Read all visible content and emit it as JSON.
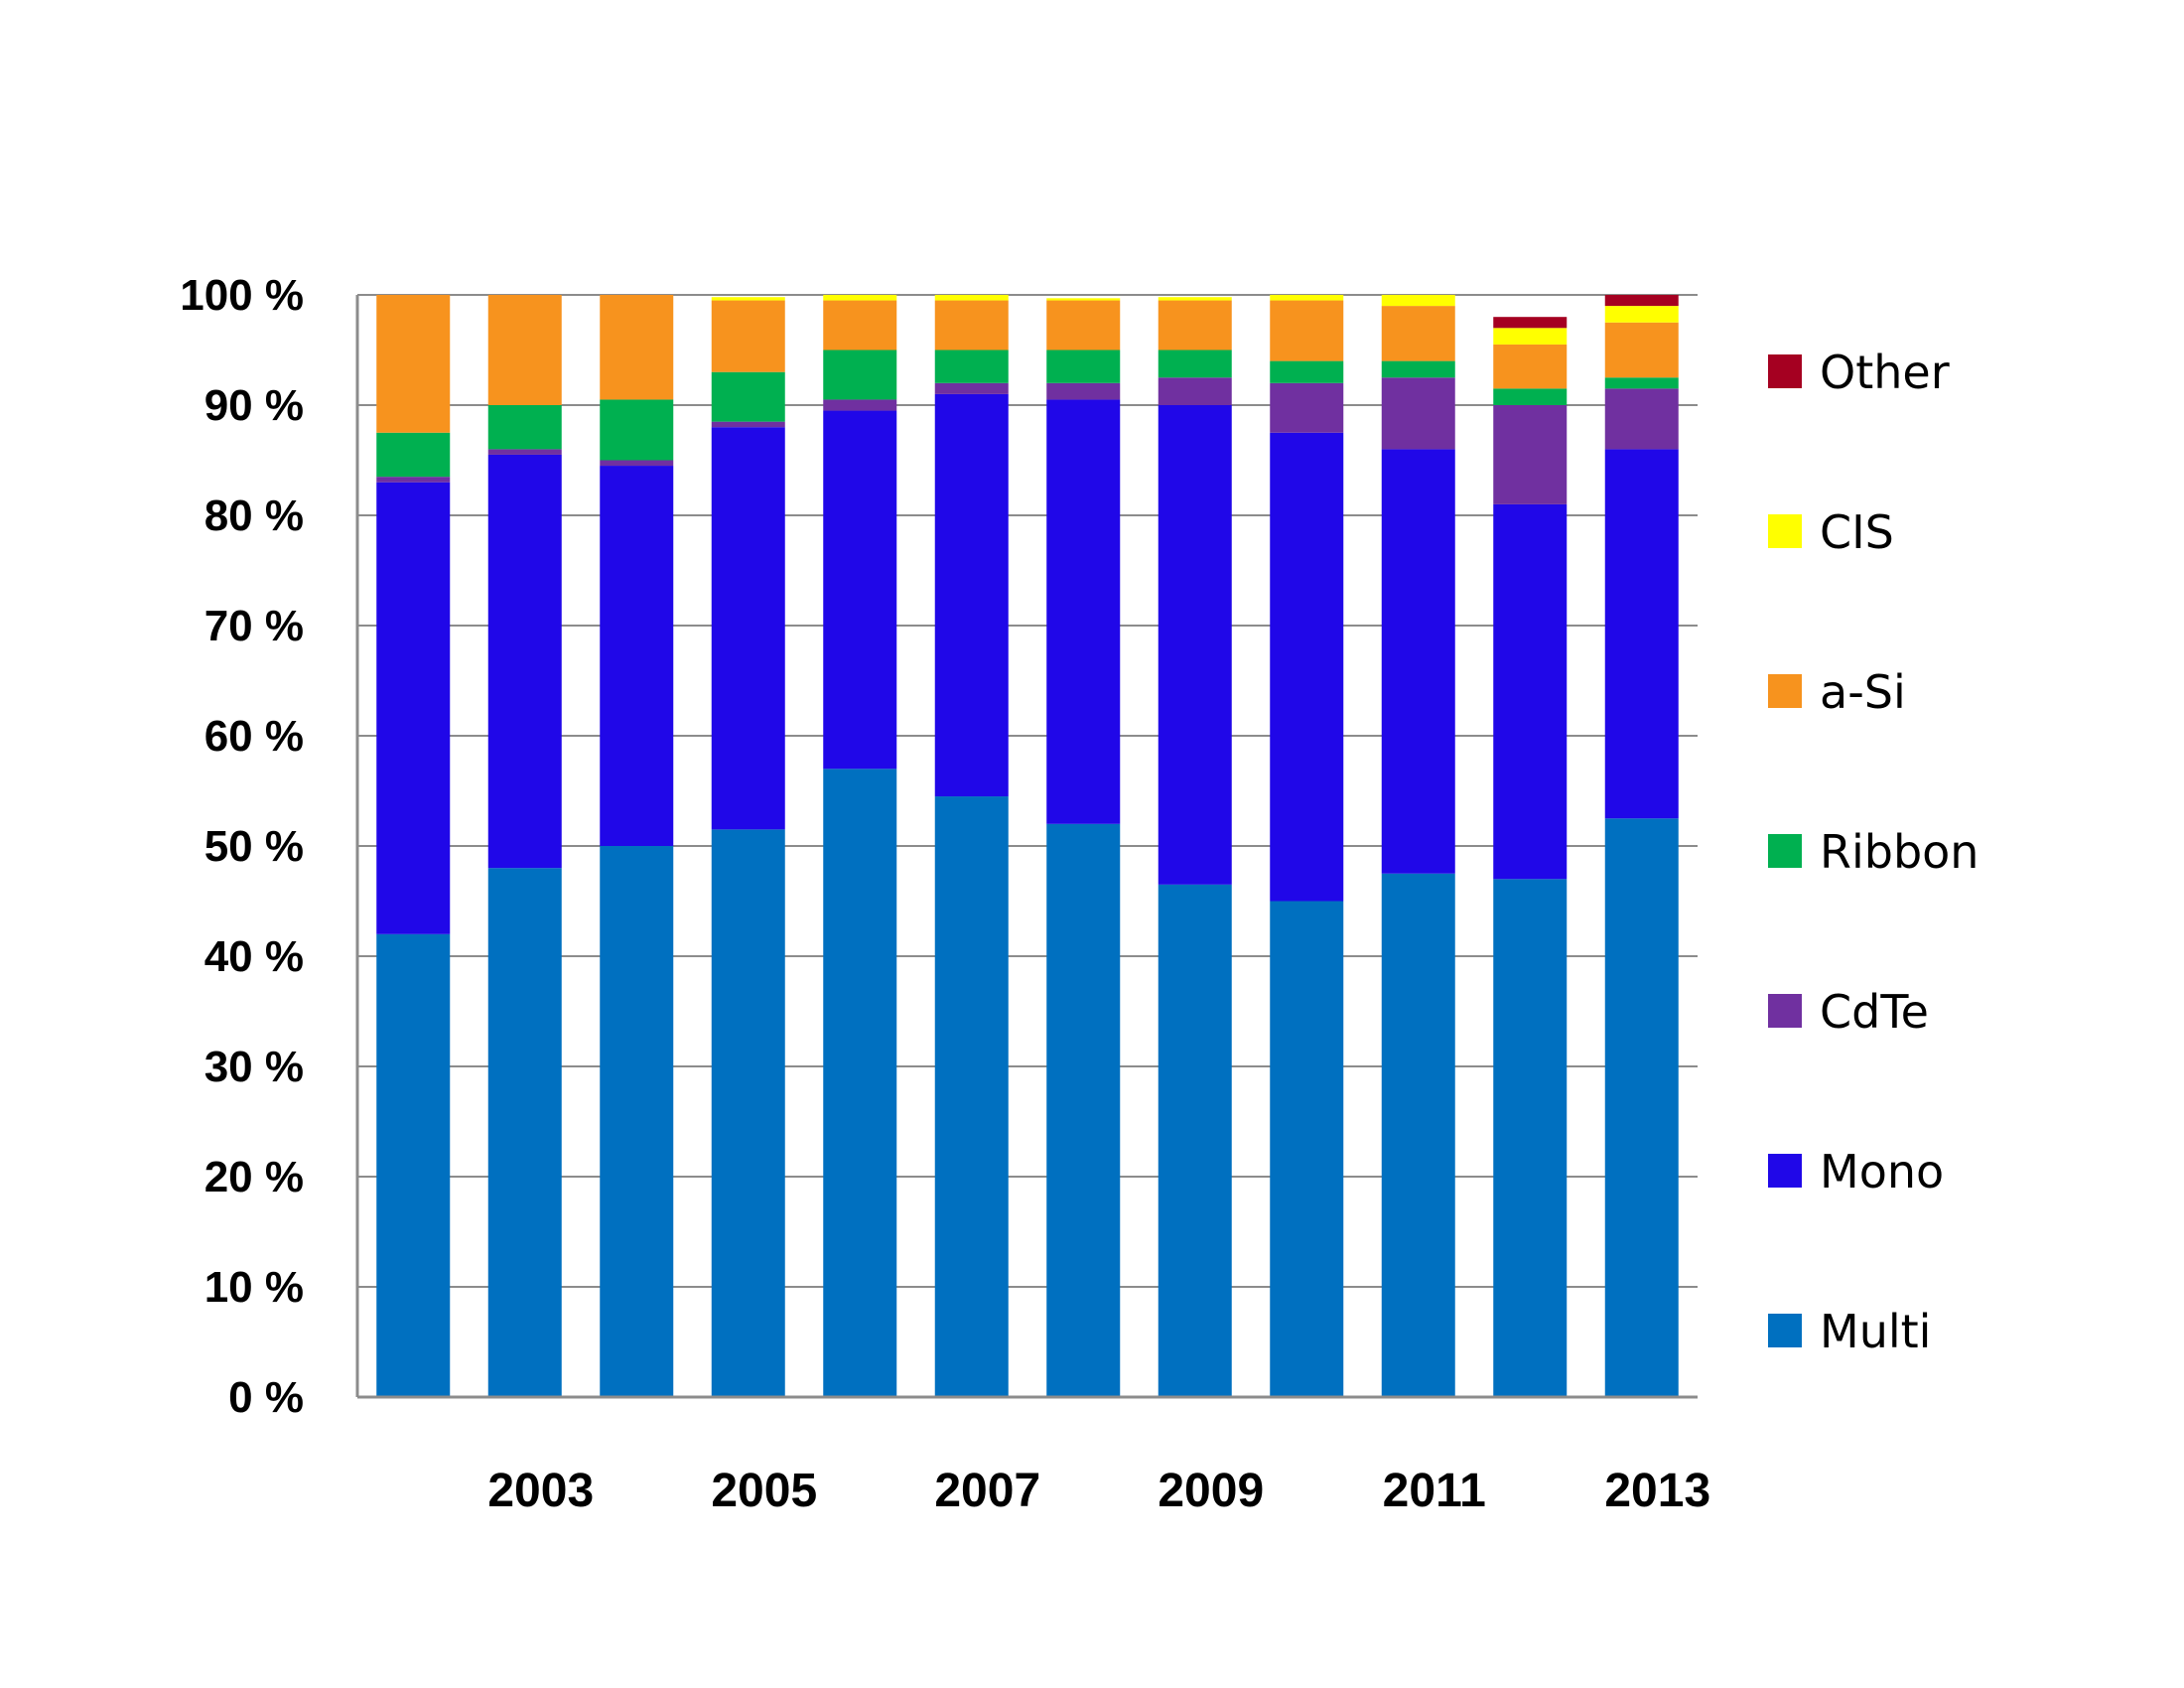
{
  "chart_data": {
    "type": "bar",
    "stacked": true,
    "categories": [
      "2002",
      "2003",
      "2004",
      "2005",
      "2006",
      "2007",
      "2008",
      "2009",
      "2010",
      "2011",
      "2012",
      "2013"
    ],
    "x_tick_labels": [
      "",
      "2003",
      "",
      "2005",
      "",
      "2007",
      "",
      "2009",
      "",
      "2011",
      "",
      "2013"
    ],
    "ylim": [
      0,
      100
    ],
    "y_ticks": [
      "0 %",
      "10 %",
      "20 %",
      "30 %",
      "40 %",
      "50 %",
      "60 %",
      "70 %",
      "80 %",
      "90 %",
      "100 %"
    ],
    "grid": true,
    "legend_position": "right",
    "series": [
      {
        "name": "Multi",
        "color": "#0070c0",
        "values": [
          42,
          48,
          50,
          51.5,
          57,
          54.5,
          52,
          46.5,
          45,
          47.5,
          47,
          52.5
        ]
      },
      {
        "name": "Mono",
        "color": "#2007e8",
        "values": [
          41,
          37.5,
          34.5,
          36.5,
          32.5,
          36.5,
          38.5,
          43.5,
          42.5,
          38.5,
          34,
          33.5
        ]
      },
      {
        "name": "CdTe",
        "color": "#7030a0",
        "values": [
          0.5,
          0.5,
          0.5,
          0.5,
          1,
          1,
          1.5,
          2.5,
          4.5,
          6.5,
          9,
          5.5
        ]
      },
      {
        "name": "Ribbon",
        "color": "#00b050",
        "values": [
          4,
          4,
          5.5,
          4.5,
          4.5,
          3,
          3,
          2.5,
          2,
          1.5,
          1.5,
          1
        ]
      },
      {
        "name": "a-Si",
        "color": "#f7931e",
        "values": [
          12.5,
          10,
          9.5,
          6.5,
          4.5,
          4.5,
          4.5,
          4.5,
          5.5,
          5,
          4,
          5
        ]
      },
      {
        "name": "CIS",
        "color": "#ffff00",
        "values": [
          0,
          0,
          0,
          0.3,
          0.5,
          0.5,
          0.2,
          0.3,
          0.5,
          1,
          1.5,
          1.5
        ]
      },
      {
        "name": "Other",
        "color": "#a50021",
        "values": [
          0,
          0,
          0,
          0,
          0,
          0,
          0,
          0,
          0,
          0,
          1,
          1
        ]
      }
    ]
  }
}
